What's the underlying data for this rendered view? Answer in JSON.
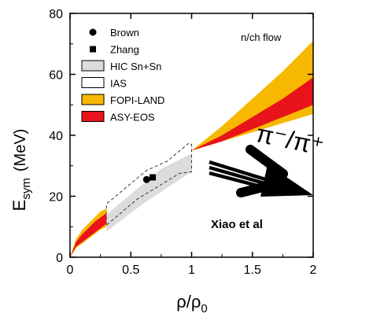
{
  "chart_data": {
    "type": "area",
    "ylabel": "E",
    "ylabel_sub": "sym",
    "ylabel_unit": "(MeV)",
    "xlabel": "ρ/ρ",
    "xlabel_sub": "0",
    "xlim": [
      0,
      2
    ],
    "ylim": [
      0,
      80
    ],
    "xticks": [
      "0",
      "0.5",
      "1",
      "1.5",
      "2"
    ],
    "yticks": [
      "0",
      "20",
      "40",
      "60",
      "80"
    ],
    "legend_position": "top-left",
    "grid": false,
    "legend": [
      {
        "name": "Brown",
        "marker": "circle",
        "color": "#000000"
      },
      {
        "name": "Zhang",
        "marker": "square",
        "color": "#000000"
      },
      {
        "name": "HIC Sn+Sn",
        "marker": "box",
        "color": "#dcdcdc"
      },
      {
        "name": "IAS",
        "marker": "box",
        "color": "#ffffff"
      },
      {
        "name": "FOPI-LAND",
        "marker": "box",
        "color": "#f6b800"
      },
      {
        "name": "ASY-EOS",
        "marker": "box",
        "color": "#e8131b"
      }
    ],
    "points": [
      {
        "name": "Brown",
        "x": 0.63,
        "y": 25.5
      },
      {
        "name": "Zhang",
        "x": 0.68,
        "y": 26.2
      }
    ],
    "bands": [
      {
        "name": "HIC Sn+Sn",
        "color": "#dcdcdc",
        "x": [
          0.3,
          0.45,
          0.6,
          0.75,
          1.0
        ],
        "upper": [
          14,
          19,
          24,
          29,
          34
        ],
        "lower": [
          8.5,
          13,
          17.5,
          21.5,
          28
        ]
      },
      {
        "name": "IAS",
        "color": "none",
        "corners": [
          [
            0.3,
            10.5
          ],
          [
            0.3,
            17.5
          ],
          [
            0.63,
            28.5
          ],
          [
            0.8,
            31.5
          ],
          [
            0.98,
            37.5
          ],
          [
            1.0,
            37
          ],
          [
            1.0,
            28
          ],
          [
            0.9,
            27.5
          ],
          [
            0.55,
            19
          ]
        ]
      },
      {
        "name": "FOPI-LAND",
        "color": "#f6b800",
        "x": [
          0,
          0.05,
          0.1,
          0.15,
          0.2,
          0.25,
          0.3
        ],
        "upper": [
          0,
          6,
          9,
          11,
          13,
          15,
          16
        ],
        "lower": [
          0,
          3,
          4.5,
          6,
          7.5,
          9,
          10
        ]
      },
      {
        "name": "FOPI-LAND",
        "color": "#f6b800",
        "x": [
          1.0,
          1.25,
          1.5,
          1.75,
          2.0
        ],
        "upper": [
          35,
          43,
          52,
          61,
          71
        ],
        "lower": [
          35,
          38,
          41,
          44,
          47
        ]
      },
      {
        "name": "ASY-EOS",
        "color": "#e8131b",
        "x": [
          0,
          0.05,
          0.1,
          0.15,
          0.2,
          0.25,
          0.3
        ],
        "upper": [
          0,
          5,
          7.5,
          9.5,
          11.5,
          13,
          14.5
        ],
        "lower": [
          0,
          3.5,
          5,
          6.5,
          8,
          9.5,
          11
        ]
      },
      {
        "name": "ASY-EOS",
        "color": "#e8131b",
        "x": [
          1.0,
          1.25,
          1.5,
          1.75,
          2.0
        ],
        "upper": [
          35,
          40,
          46,
          52,
          59
        ],
        "lower": [
          35,
          38,
          42,
          46,
          50
        ]
      }
    ],
    "annotations": {
      "flow_label": "n/ch flow",
      "pion_ratio": "π⁻/π⁺",
      "citation": "Xiao et al"
    }
  }
}
